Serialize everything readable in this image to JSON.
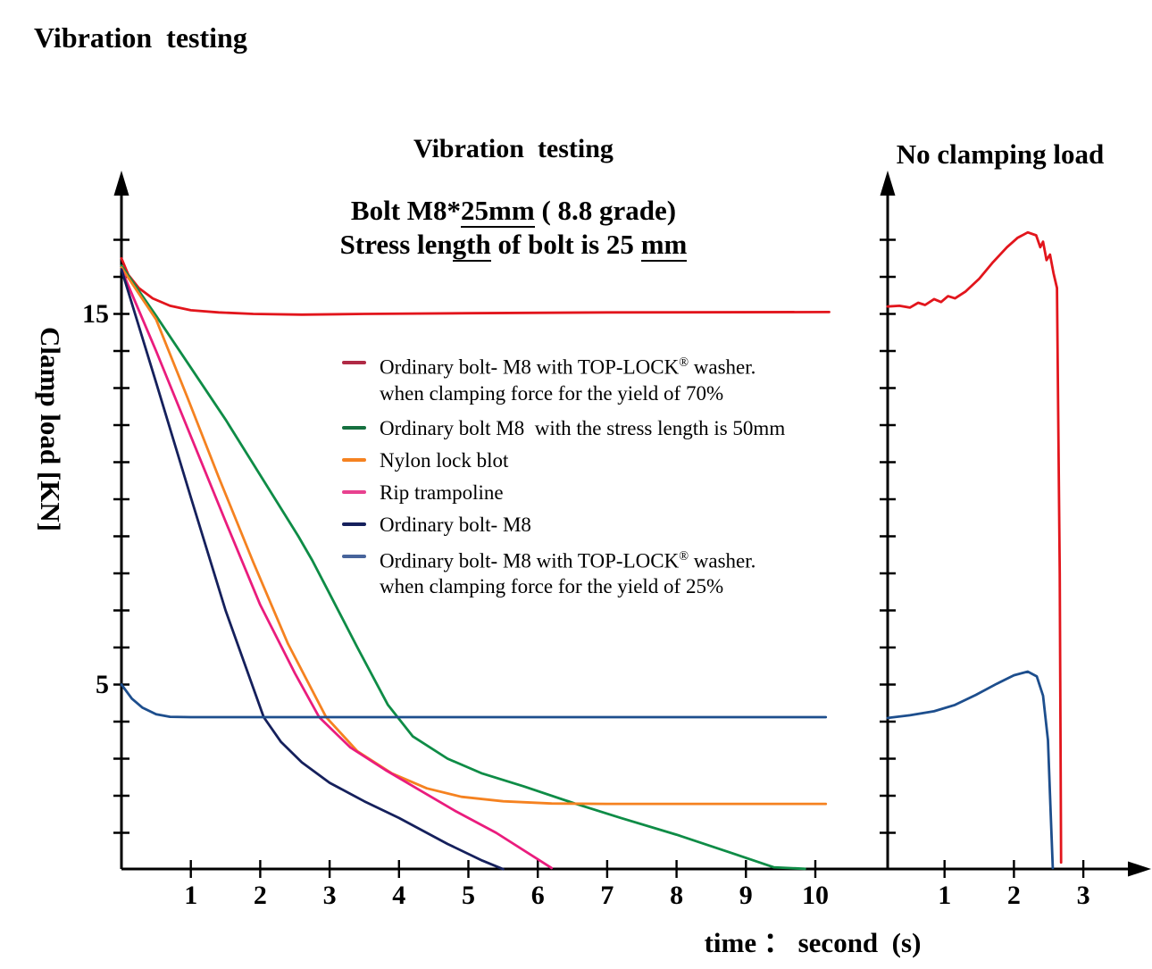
{
  "page": {
    "header": "Vibration  testing"
  },
  "main_chart": {
    "title": "Vibration  testing",
    "subtitle1": {
      "a": "Bolt M8*",
      "u": "25mm",
      "b": " ( 8.8 grade)"
    },
    "subtitle2": {
      "a": "Stress len",
      "u1": "gth",
      "b": " of bolt is 25 ",
      "u2": "mm"
    },
    "ylabel": "Clamp load [KN]",
    "xlabel": "time ： second  (s)"
  },
  "right_chart": {
    "title": "No clamping load"
  },
  "legend": {
    "items": [
      {
        "color": "#b02a45",
        "a": "Ordinary bolt- M8 with TOP-LOCK",
        "sup": "®",
        "b": " washer.",
        "line2": "when clamping force for the yield of 70%"
      },
      {
        "color": "#15703f",
        "a": "Ordinary bolt M8  with the stress length is 50mm"
      },
      {
        "color": "#f58220",
        "a": "Nylon lock blot"
      },
      {
        "color": "#e8418f",
        "a": "Rip trampoline"
      },
      {
        "color": "#15205c",
        "a": "Ordinary bolt- M8"
      },
      {
        "color": "#47649b",
        "a": "Ordinary bolt- M8 with TOP-LOCK",
        "sup": "®",
        "b": " washer.",
        "line2": "when clamping force for the yield of 25%"
      }
    ]
  },
  "chart_data": [
    {
      "id": "vibration",
      "type": "line",
      "title": "Vibration testing",
      "subtitle": "Bolt M8*25mm ( 8.8 grade) / Stress length of bolt is 25 mm",
      "xlabel": "time ： second (s)",
      "ylabel": "Clamp load [KN]",
      "xlim": [
        0,
        10.6
      ],
      "ylim": [
        0,
        18
      ],
      "x_ticks": [
        1,
        2,
        3,
        4,
        5,
        6,
        7,
        8,
        9,
        10
      ],
      "y_ticks": [
        1,
        2,
        3,
        4,
        5,
        6,
        7,
        8,
        9,
        10,
        11,
        12,
        13,
        14,
        15,
        16,
        17
      ],
      "y_labeled_ticks": [
        5,
        15
      ],
      "grid": false,
      "legend_position": "inside-center",
      "series": [
        {
          "name": "Ordinary bolt- M8 with TOP-LOCK® washer, clamping force 70% of yield",
          "color": "#e2151c",
          "points": [
            [
              0,
              16.5
            ],
            [
              0.1,
              16.05
            ],
            [
              0.25,
              15.7
            ],
            [
              0.45,
              15.42
            ],
            [
              0.7,
              15.22
            ],
            [
              1,
              15.1
            ],
            [
              1.4,
              15.04
            ],
            [
              1.9,
              15.0
            ],
            [
              2.6,
              14.98
            ],
            [
              3.5,
              15.0
            ],
            [
              5,
              15.02
            ],
            [
              7,
              15.04
            ],
            [
              10.2,
              15.05
            ]
          ]
        },
        {
          "name": "Ordinary bolt M8 with the stress length is 50mm",
          "color": "#0e8c46",
          "points": [
            [
              0,
              16.3
            ],
            [
              0.5,
              14.95
            ],
            [
              1,
              13.55
            ],
            [
              1.5,
              12.15
            ],
            [
              2,
              10.65
            ],
            [
              2.35,
              9.6
            ],
            [
              2.55,
              9.0
            ],
            [
              2.75,
              8.35
            ],
            [
              3,
              7.45
            ],
            [
              3.4,
              6.0
            ],
            [
              3.84,
              4.45
            ],
            [
              4.2,
              3.6
            ],
            [
              4.7,
              3.0
            ],
            [
              5.2,
              2.6
            ],
            [
              5.8,
              2.25
            ],
            [
              6.55,
              1.78
            ],
            [
              7.2,
              1.4
            ],
            [
              8,
              0.95
            ],
            [
              8.8,
              0.45
            ],
            [
              9.4,
              0.07
            ],
            [
              9.85,
              0.03
            ]
          ]
        },
        {
          "name": "Nylon lock blot",
          "color": "#f58220",
          "points": [
            [
              0,
              16.25
            ],
            [
              0.5,
              14.85
            ],
            [
              0.95,
              12.75
            ],
            [
              1.4,
              10.6
            ],
            [
              1.9,
              8.3
            ],
            [
              2.4,
              6.1
            ],
            [
              2.95,
              4.12
            ],
            [
              3.4,
              3.2
            ],
            [
              3.9,
              2.6
            ],
            [
              4.4,
              2.2
            ],
            [
              4.9,
              1.97
            ],
            [
              5.5,
              1.85
            ],
            [
              6.2,
              1.79
            ],
            [
              7,
              1.78
            ],
            [
              10.15,
              1.78
            ]
          ]
        },
        {
          "name": "Rip trampoline",
          "color": "#ea1c7d",
          "points": [
            [
              0,
              16.2
            ],
            [
              0.5,
              14.0
            ],
            [
              1,
              11.7
            ],
            [
              1.5,
              9.4
            ],
            [
              2,
              7.15
            ],
            [
              2.5,
              5.3
            ],
            [
              2.85,
              4.12
            ],
            [
              3.3,
              3.3
            ],
            [
              3.8,
              2.7
            ],
            [
              4.3,
              2.15
            ],
            [
              4.8,
              1.6
            ],
            [
              5.4,
              1.0
            ],
            [
              6.2,
              0.05
            ]
          ]
        },
        {
          "name": "Ordinary bolt- M8",
          "color": "#15205c",
          "points": [
            [
              0,
              16.2
            ],
            [
              0.5,
              13.15
            ],
            [
              1,
              10.05
            ],
            [
              1.5,
              7.0
            ],
            [
              2.05,
              4.12
            ],
            [
              2.3,
              3.45
            ],
            [
              2.6,
              2.9
            ],
            [
              3,
              2.35
            ],
            [
              3.5,
              1.85
            ],
            [
              4,
              1.4
            ],
            [
              4.7,
              0.7
            ],
            [
              5.2,
              0.25
            ],
            [
              5.5,
              0.02
            ]
          ]
        },
        {
          "name": "Ordinary bolt- M8 with TOP-LOCK® washer, clamping force 25% of yield",
          "color": "#1d4e8d",
          "points": [
            [
              0,
              5.0
            ],
            [
              0.15,
              4.62
            ],
            [
              0.3,
              4.38
            ],
            [
              0.5,
              4.2
            ],
            [
              0.7,
              4.13
            ],
            [
              1,
              4.12
            ],
            [
              10.15,
              4.12
            ]
          ]
        }
      ]
    },
    {
      "id": "no_clamping_load",
      "type": "line",
      "title": "No clamping load",
      "xlim": [
        0,
        3.8
      ],
      "ylim": [
        0,
        18
      ],
      "x_ticks": [
        1,
        2,
        3
      ],
      "y_ticks": [
        1,
        2,
        3,
        4,
        5,
        6,
        7,
        8,
        9,
        10,
        11,
        12,
        13,
        14,
        15,
        16,
        17
      ],
      "grid": false,
      "series": [
        {
          "name": "Ordinary bolt- M8 with TOP-LOCK® washer, clamping force 70% of yield",
          "color": "#e2151c",
          "points": [
            [
              0.18,
              15.2
            ],
            [
              0.35,
              15.22
            ],
            [
              0.5,
              15.17
            ],
            [
              0.62,
              15.3
            ],
            [
              0.72,
              15.24
            ],
            [
              0.85,
              15.4
            ],
            [
              0.95,
              15.32
            ],
            [
              1.05,
              15.48
            ],
            [
              1.15,
              15.42
            ],
            [
              1.3,
              15.6
            ],
            [
              1.5,
              15.95
            ],
            [
              1.7,
              16.4
            ],
            [
              1.9,
              16.8
            ],
            [
              2.05,
              17.05
            ],
            [
              2.2,
              17.2
            ],
            [
              2.32,
              17.12
            ],
            [
              2.38,
              16.8
            ],
            [
              2.42,
              16.95
            ],
            [
              2.47,
              16.45
            ],
            [
              2.52,
              16.6
            ],
            [
              2.57,
              16.1
            ],
            [
              2.62,
              15.7
            ],
            [
              2.66,
              8.0
            ],
            [
              2.68,
              0.2
            ]
          ]
        },
        {
          "name": "Ordinary bolt- M8 with TOP-LOCK® washer, clamping force 25% of yield",
          "color": "#1d4e8d",
          "points": [
            [
              0.18,
              4.1
            ],
            [
              0.5,
              4.17
            ],
            [
              0.85,
              4.28
            ],
            [
              1.15,
              4.45
            ],
            [
              1.45,
              4.72
            ],
            [
              1.75,
              5.02
            ],
            [
              2.0,
              5.25
            ],
            [
              2.2,
              5.35
            ],
            [
              2.33,
              5.22
            ],
            [
              2.42,
              4.7
            ],
            [
              2.49,
              3.5
            ],
            [
              2.53,
              1.5
            ],
            [
              2.56,
              0.05
            ]
          ]
        }
      ]
    }
  ]
}
